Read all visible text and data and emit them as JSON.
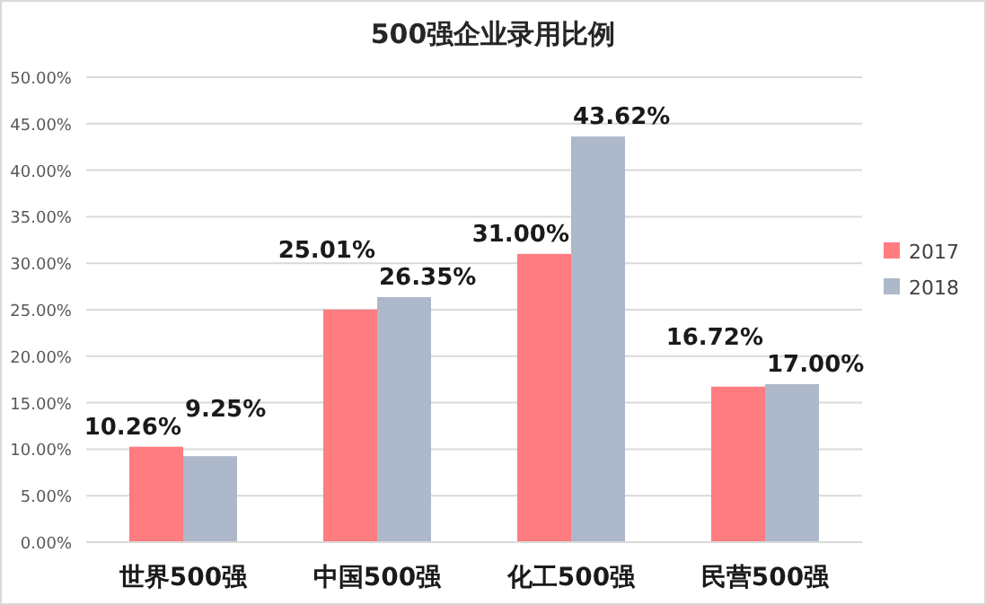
{
  "chart_data": {
    "type": "bar",
    "title": "500强企业录用比例",
    "categories": [
      "世界500强",
      "中国500强",
      "化工500强",
      "民营500强"
    ],
    "series": [
      {
        "name": "2017",
        "color": "#ff7c80",
        "values": [
          10.26,
          25.01,
          31.0,
          16.72
        ],
        "value_labels": [
          "10.26%",
          "25.01%",
          "31.00%",
          "16.72%"
        ]
      },
      {
        "name": "2018",
        "color": "#adb9ca",
        "values": [
          9.25,
          26.35,
          43.62,
          17.0
        ],
        "value_labels": [
          "9.25%",
          "26.35%",
          "43.62%",
          "17.00%"
        ]
      }
    ],
    "ylim": [
      0,
      50
    ],
    "yticks": [
      {
        "value": 0,
        "label": "0.00%"
      },
      {
        "value": 5,
        "label": "5.00%"
      },
      {
        "value": 10,
        "label": "10.00%"
      },
      {
        "value": 15,
        "label": "15.00%"
      },
      {
        "value": 20,
        "label": "20.00%"
      },
      {
        "value": 25,
        "label": "25.00%"
      },
      {
        "value": 30,
        "label": "30.00%"
      },
      {
        "value": 35,
        "label": "35.00%"
      },
      {
        "value": 40,
        "label": "40.00%"
      },
      {
        "value": 45,
        "label": "45.00%"
      },
      {
        "value": 50,
        "label": "50.00%"
      }
    ],
    "grid": "y",
    "legend": "right"
  }
}
